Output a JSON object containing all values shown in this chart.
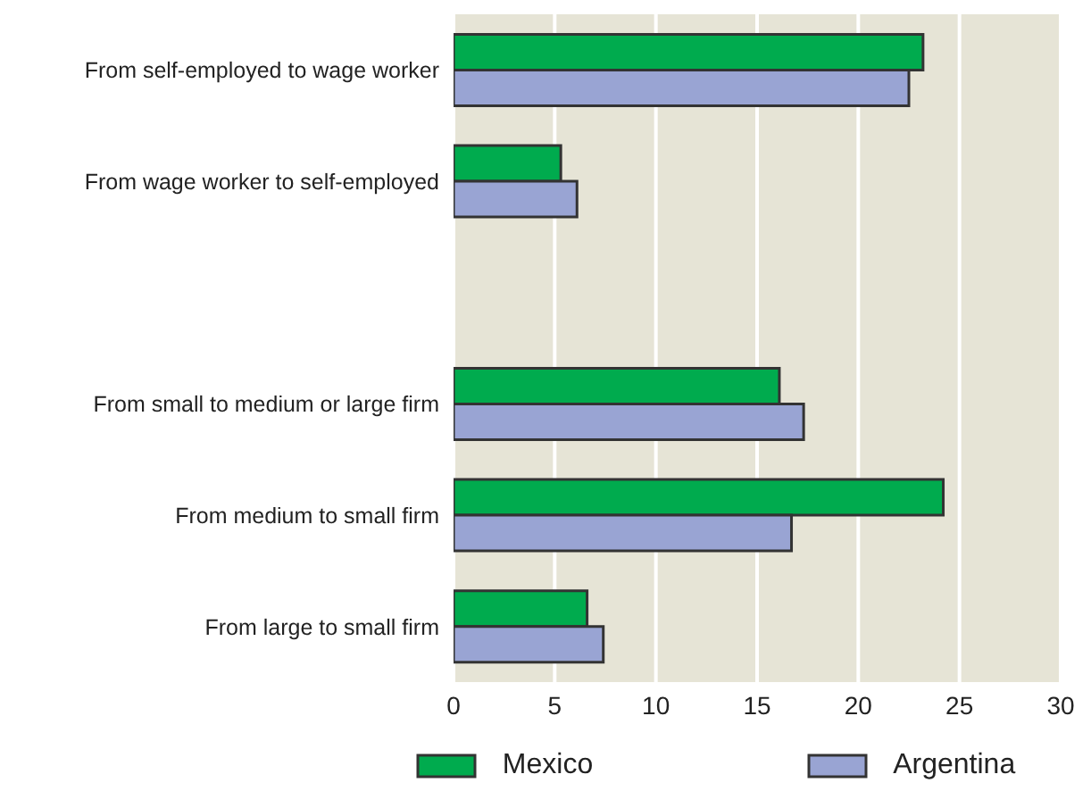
{
  "chart_data": {
    "type": "bar",
    "orientation": "horizontal",
    "categories": [
      "From self-employed to wage worker",
      "From wage worker to self-employed",
      null,
      "From small to medium or large firm",
      "From medium to small firm",
      "From large to small firm"
    ],
    "series": [
      {
        "name": "Mexico",
        "color": "#00ab4e",
        "values": [
          23.2,
          5.3,
          null,
          16.1,
          24.2,
          6.6
        ]
      },
      {
        "name": "Argentina",
        "color": "#99a4d3",
        "values": [
          22.5,
          6.1,
          null,
          17.3,
          16.7,
          7.4
        ]
      }
    ],
    "xlim": [
      0,
      30
    ],
    "xticks": [
      0,
      5,
      10,
      15,
      20,
      25,
      30
    ],
    "grid": "x",
    "legend": "bottom"
  }
}
